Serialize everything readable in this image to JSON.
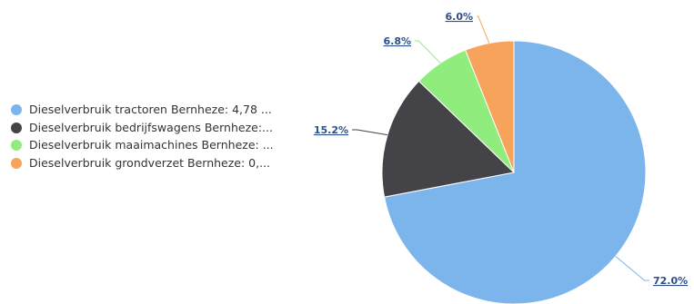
{
  "chart_data": {
    "type": "pie",
    "title": "",
    "legend_position": "left",
    "slices": [
      {
        "name": "Dieselverbruik tractoren Bernheze: 4,78 ...",
        "value": 72.0,
        "label": "72.0%",
        "color": "#7cb5ec"
      },
      {
        "name": "Dieselverbruik bedrijfswagens Bernheze:...",
        "value": 15.2,
        "label": "15.2%",
        "color": "#434348"
      },
      {
        "name": "Dieselverbruik maaimachines Bernheze: ...",
        "value": 6.8,
        "label": "6.8%",
        "color": "#90ed7d"
      },
      {
        "name": "Dieselverbruik grondverzet Bernheze: 0,...",
        "value": 6.0,
        "label": "6.0%",
        "color": "#f7a35c"
      }
    ]
  }
}
